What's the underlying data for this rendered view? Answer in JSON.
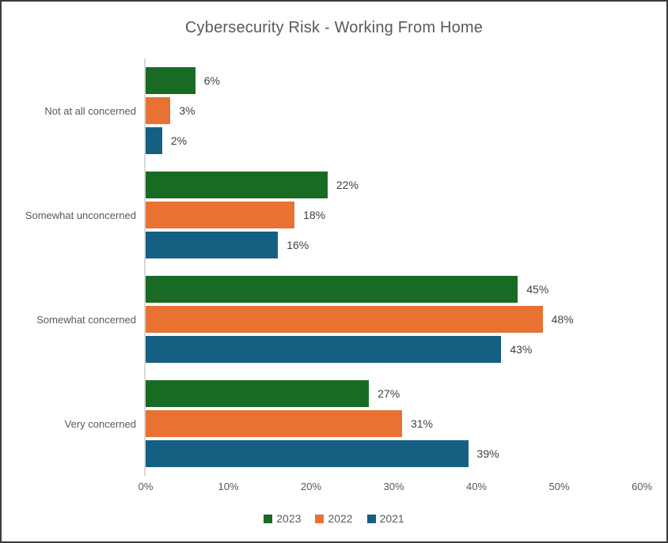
{
  "title": "Cybersecurity Risk - Working From Home",
  "chart_data": {
    "type": "bar",
    "orientation": "horizontal",
    "title": "Cybersecurity Risk - Working From Home",
    "categories": [
      "Not at all concerned",
      "Somewhat unconcerned",
      "Somewhat concerned",
      "Very concerned"
    ],
    "series": [
      {
        "name": "2023",
        "color": "#196B24",
        "values": [
          6,
          22,
          45,
          27
        ]
      },
      {
        "name": "2022",
        "color": "#E97132",
        "values": [
          3,
          18,
          48,
          31
        ]
      },
      {
        "name": "2021",
        "color": "#156082",
        "values": [
          2,
          16,
          43,
          39
        ]
      }
    ],
    "value_suffix": "%",
    "xlabel": "",
    "ylabel": "",
    "xlim": [
      0,
      60
    ],
    "x_ticks": [
      "0%",
      "10%",
      "20%",
      "30%",
      "40%",
      "50%",
      "60%"
    ],
    "grid": false,
    "legend_position": "bottom",
    "data_labels": true
  },
  "colors": {
    "frame_border": "#3b3b3b",
    "axis_line": "#d9d9d9",
    "title_text": "#595959",
    "category_text": "#595959",
    "tick_text": "#595959",
    "data_label_text": "#404040",
    "series_2023": "#196B24",
    "series_2022": "#E97132",
    "series_2021": "#156082"
  }
}
